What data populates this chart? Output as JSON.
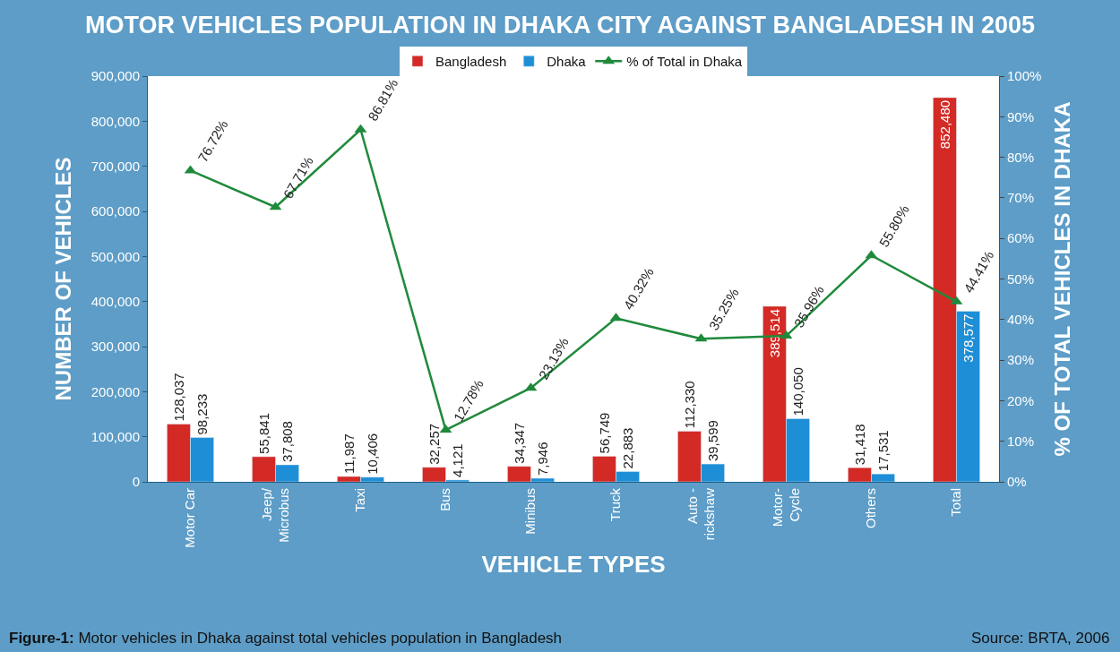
{
  "chart_data": {
    "type": "bar",
    "title": "MOTOR VEHICLES POPULATION IN DHAKA CITY AGAINST BANGLADESH IN 2005",
    "xlabel": "VEHICLE TYPES",
    "ylabel": "NUMBER OF VEHICLES",
    "y2label": "% OF TOTAL VEHICLES IN DHAKA",
    "categories": [
      "Motor Car",
      "Jeep/\nMicrobus",
      "Taxi",
      "Bus",
      "Minibus",
      "Truck",
      "Auto -\nrickshaw",
      "Motor-\nCycle",
      "Others",
      "Total"
    ],
    "series": [
      {
        "name": "Bangladesh",
        "color": "#d42a25",
        "values": [
          128037,
          55841,
          11987,
          32257,
          34347,
          56749,
          112330,
          389514,
          31418,
          852480
        ],
        "value_labels": [
          "128,037",
          "55,841",
          "11,987",
          "32,257",
          "34,347",
          "56,749",
          "112,330",
          "389,514",
          "31,418",
          "852,480"
        ]
      },
      {
        "name": "Dhaka",
        "color": "#1e8fd6",
        "values": [
          98233,
          37808,
          10406,
          4121,
          7946,
          22883,
          39599,
          140050,
          17531,
          378577
        ],
        "value_labels": [
          "98,233",
          "37,808",
          "10,406",
          "4,121",
          "7,946",
          "22,883",
          "39,599",
          "140,050",
          "17,531",
          "378,577"
        ]
      },
      {
        "name": "% of Total in Dhaka",
        "type": "line",
        "axis": "y2",
        "color": "#1f8a3b",
        "marker": "triangle",
        "values": [
          76.72,
          67.71,
          86.81,
          12.78,
          23.13,
          40.32,
          35.25,
          35.96,
          55.8,
          44.41
        ],
        "value_labels": [
          "76.72%",
          "67.71%",
          "86.81%",
          "12.78%",
          "23.13%",
          "40.32%",
          "35.25%",
          "35.96%",
          "55.80%",
          "44.41%"
        ]
      }
    ],
    "ylim": [
      0,
      900000
    ],
    "yticks": [
      0,
      {
        "value": 100000,
        "label": "100,000"
      },
      {
        "value": 200000,
        "label": "200,000"
      },
      {
        "value": 300000,
        "label": "300,000"
      },
      {
        "value": 400000,
        "label": "400,000"
      },
      {
        "value": 500000,
        "label": "500,000"
      },
      {
        "value": 600000,
        "label": "600,000"
      },
      {
        "value": 700000,
        "label": "700,000"
      },
      {
        "value": 800000,
        "label": "800,000"
      },
      {
        "value": 900000,
        "label": "900,000"
      }
    ],
    "y2lim": [
      0,
      100
    ],
    "y2ticks": [
      {
        "value": 0,
        "label": "0%"
      },
      {
        "value": 10,
        "label": "10%"
      },
      {
        "value": 20,
        "label": "20%"
      },
      {
        "value": 30,
        "label": "30%"
      },
      {
        "value": 40,
        "label": "40%"
      },
      {
        "value": 50,
        "label": "50%"
      },
      {
        "value": 60,
        "label": "60%"
      },
      {
        "value": 70,
        "label": "70%"
      },
      {
        "value": 80,
        "label": "80%"
      },
      {
        "value": 90,
        "label": "90%"
      },
      {
        "value": 100,
        "label": "100%"
      }
    ],
    "legend": "top",
    "annotations": [
      "Figure-1: Motor vehicles in Dhaka against total vehicles population in Bangladesh",
      "Source: BRTA, 2006"
    ]
  }
}
